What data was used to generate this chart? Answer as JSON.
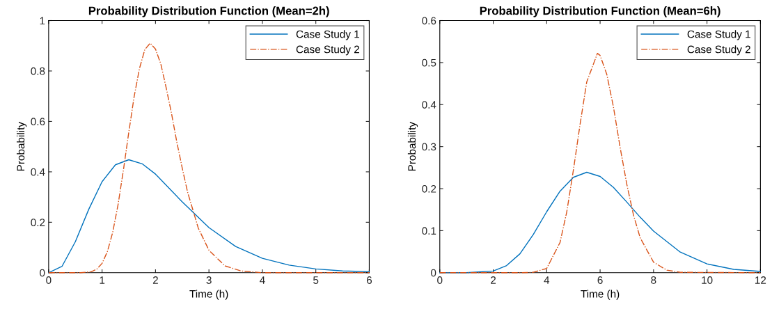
{
  "chart_data": [
    {
      "type": "line",
      "title": "Probability Distribution Function (Mean=2h)",
      "xlabel": "Time (h)",
      "ylabel": "Probability",
      "xlim": [
        0,
        6
      ],
      "ylim": [
        0,
        1
      ],
      "xticks": [
        0,
        1,
        2,
        3,
        4,
        5,
        6
      ],
      "yticks": [
        0,
        0.2,
        0.4,
        0.6,
        0.8,
        1
      ],
      "grid": false,
      "legend": "top right",
      "marker": "none",
      "series": [
        {
          "name": "Case Study 1",
          "color": "#0072bd",
          "line_style": "solid",
          "x": [
            0,
            0.25,
            0.5,
            0.75,
            1,
            1.25,
            1.5,
            1.75,
            2,
            2.5,
            3,
            3.5,
            4,
            4.5,
            5,
            5.5,
            6
          ],
          "values": [
            0,
            0.025,
            0.123,
            0.251,
            0.361,
            0.428,
            0.448,
            0.432,
            0.391,
            0.281,
            0.179,
            0.104,
            0.057,
            0.03,
            0.015,
            0.007,
            0.004
          ]
        },
        {
          "name": "Case Study 2",
          "color": "#d95319",
          "line_style": "dashdot",
          "x": [
            0,
            0.5,
            0.6,
            0.8,
            0.9,
            1,
            1.1,
            1.2,
            1.3,
            1.4,
            1.5,
            1.6,
            1.7,
            1.8,
            1.9,
            2,
            2.1,
            2.2,
            2.3,
            2.4,
            2.5,
            2.6,
            2.8,
            3,
            3.3,
            3.6,
            4,
            6
          ],
          "values": [
            0,
            0,
            0,
            0.004,
            0.014,
            0.037,
            0.084,
            0.161,
            0.271,
            0.408,
            0.557,
            0.698,
            0.81,
            0.885,
            0.91,
            0.887,
            0.827,
            0.733,
            0.631,
            0.517,
            0.415,
            0.32,
            0.177,
            0.089,
            0.027,
            0.007,
            0,
            0
          ]
        }
      ]
    },
    {
      "type": "line",
      "title": "Probability Distribution Function (Mean=6h)",
      "xlabel": "Time (h)",
      "ylabel": "Probability",
      "xlim": [
        0,
        12
      ],
      "ylim": [
        0,
        0.6
      ],
      "xticks": [
        0,
        2,
        4,
        6,
        8,
        10,
        12
      ],
      "yticks": [
        0,
        0.1,
        0.2,
        0.3,
        0.4,
        0.5,
        0.6
      ],
      "grid": false,
      "legend": "top right",
      "marker": "none",
      "series": [
        {
          "name": "Case Study 1",
          "color": "#0072bd",
          "line_style": "solid",
          "x": [
            0,
            1,
            2,
            2.5,
            3,
            3.5,
            4,
            4.5,
            5,
            5.5,
            6,
            6.5,
            7,
            7.5,
            8,
            9,
            10,
            11,
            12
          ],
          "values": [
            0,
            0,
            0.004,
            0.017,
            0.045,
            0.091,
            0.145,
            0.194,
            0.227,
            0.239,
            0.229,
            0.203,
            0.168,
            0.132,
            0.099,
            0.049,
            0.021,
            0.008,
            0.003
          ]
        },
        {
          "name": "Case Study 2",
          "color": "#d95319",
          "line_style": "dashdot",
          "x": [
            0,
            3,
            3.5,
            4,
            4.5,
            4.75,
            5,
            5.25,
            5.5,
            5.9,
            6,
            6.25,
            6.5,
            6.75,
            7,
            7.25,
            7.5,
            8,
            8.5,
            9,
            12
          ],
          "values": [
            0,
            0,
            0.001,
            0.01,
            0.072,
            0.144,
            0.244,
            0.353,
            0.454,
            0.522,
            0.517,
            0.472,
            0.394,
            0.298,
            0.21,
            0.137,
            0.083,
            0.025,
            0.006,
            0.001,
            0
          ]
        }
      ]
    }
  ]
}
